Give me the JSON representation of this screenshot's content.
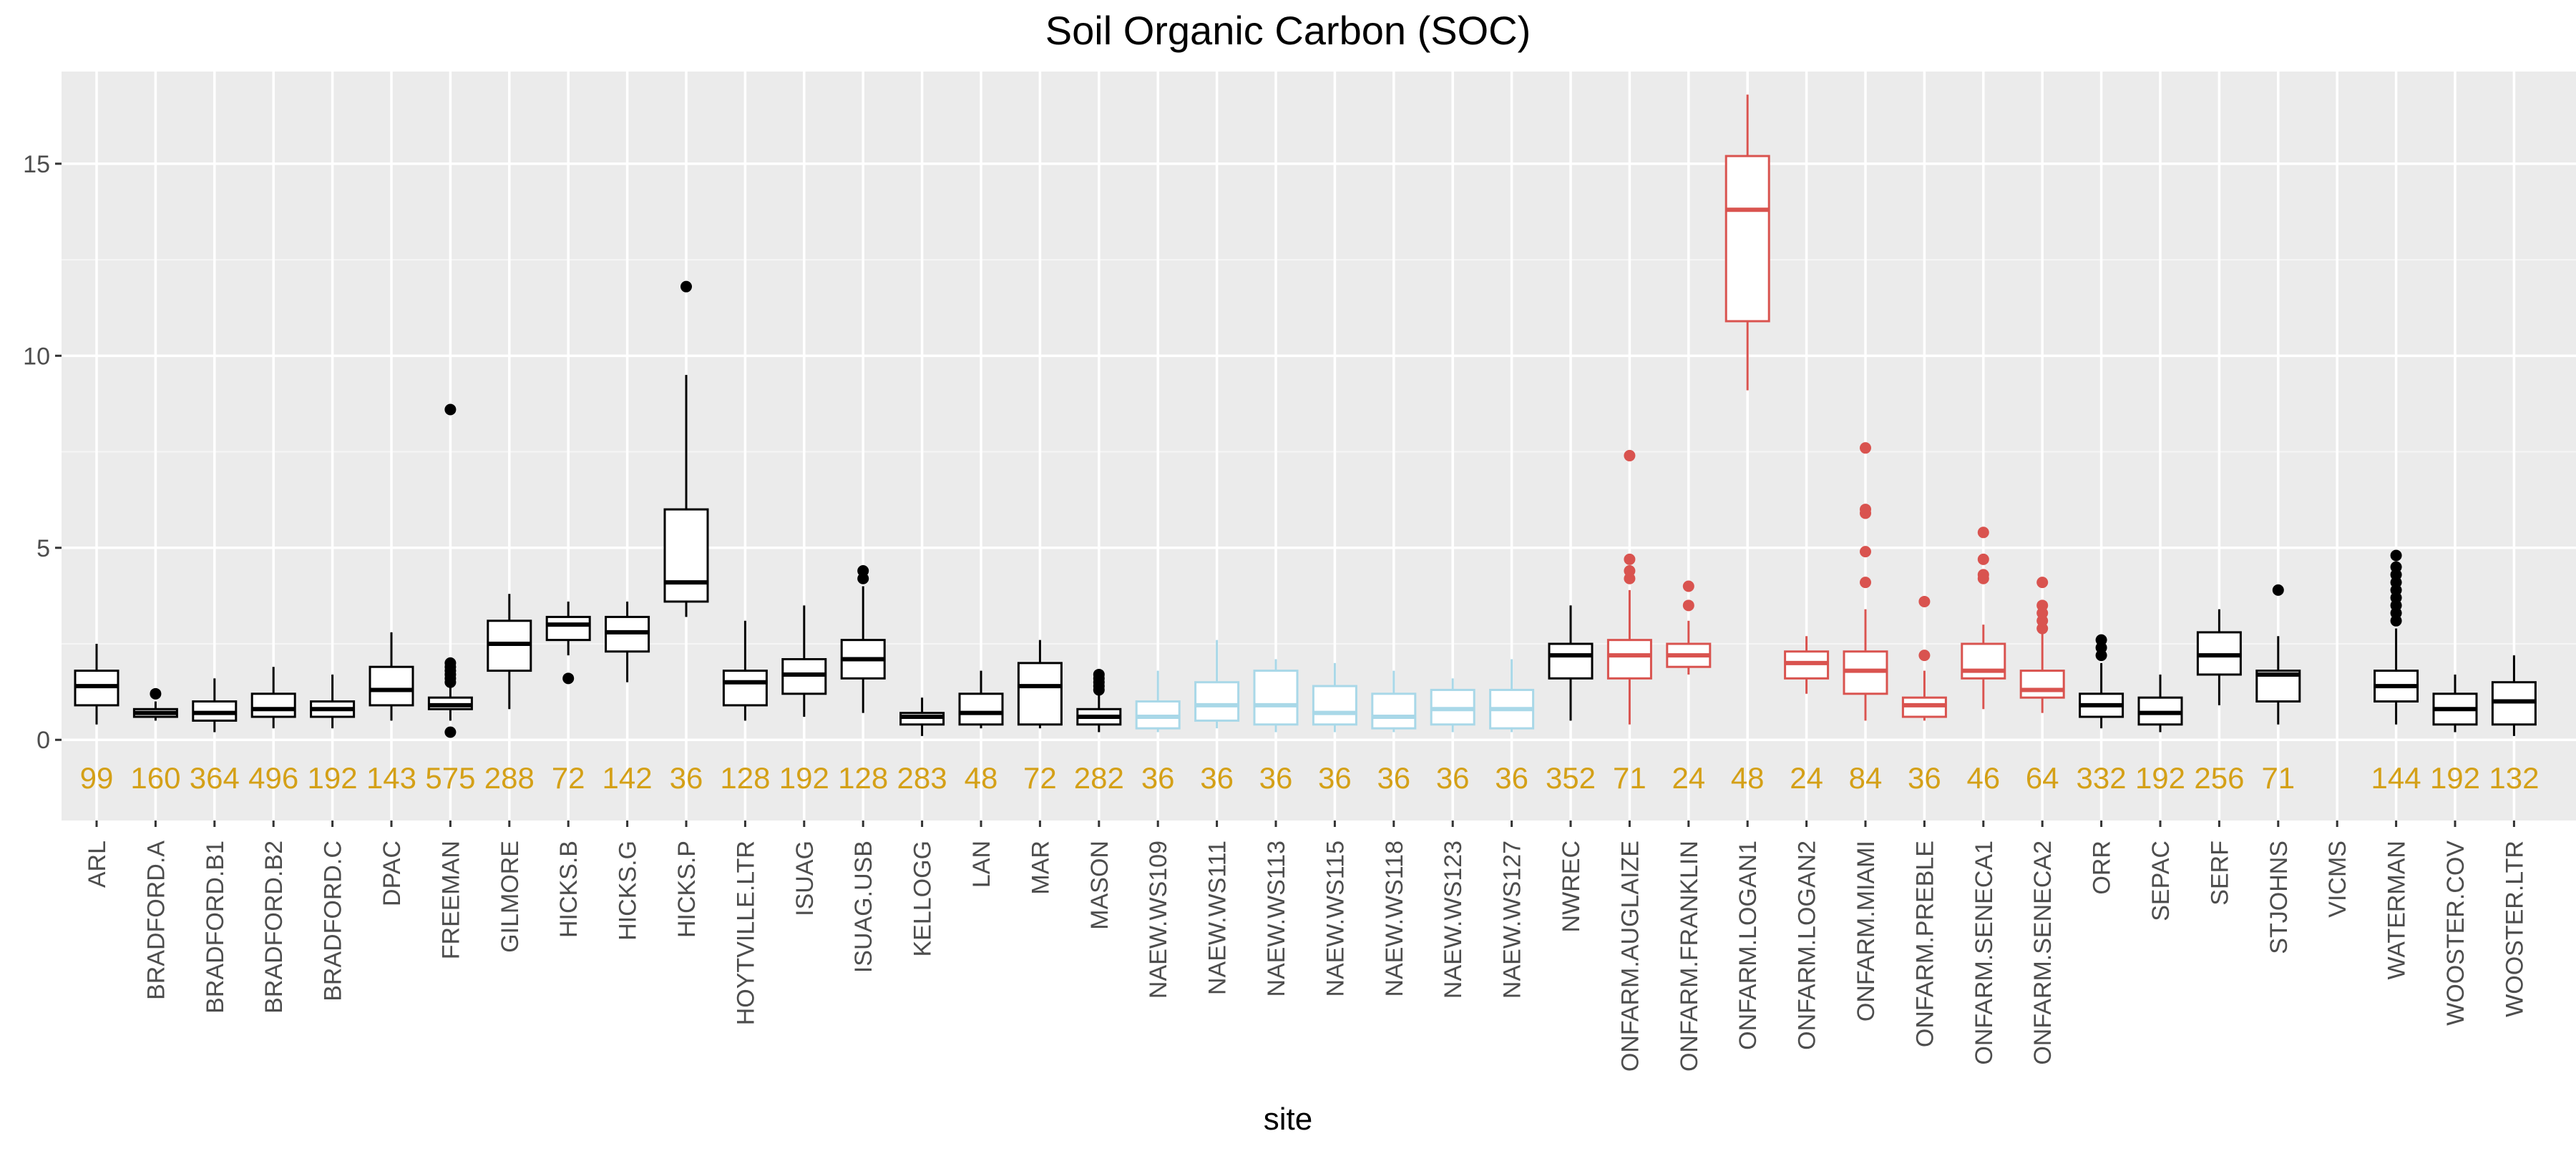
{
  "chart_data": {
    "type": "box",
    "title": "Soil Organic Carbon (SOC)",
    "xlabel": "site",
    "ylabel": "",
    "ylim": [
      -2.1,
      17.4
    ],
    "y_ticks": [
      0,
      5,
      10,
      15
    ],
    "grid": true,
    "legend": "none",
    "count_label_color": "#D4A017",
    "group_colors": {
      "default": "#000000",
      "naew": "#A9D8E8",
      "onfarm": "#D9534F"
    },
    "count_label_y": -1.0,
    "sites": [
      {
        "name": "ARL",
        "group": "default",
        "n": "99",
        "box": [
          0.4,
          0.9,
          1.4,
          1.8,
          2.5
        ],
        "outliers": []
      },
      {
        "name": "BRADFORD.A",
        "group": "default",
        "n": "160",
        "box": [
          0.5,
          0.6,
          0.7,
          0.8,
          1.0
        ],
        "outliers": [
          1.2
        ]
      },
      {
        "name": "BRADFORD.B1",
        "group": "default",
        "n": "364",
        "box": [
          0.2,
          0.5,
          0.7,
          1.0,
          1.6
        ],
        "outliers": []
      },
      {
        "name": "BRADFORD.B2",
        "group": "default",
        "n": "496",
        "box": [
          0.3,
          0.6,
          0.8,
          1.2,
          1.9
        ],
        "outliers": []
      },
      {
        "name": "BRADFORD.C",
        "group": "default",
        "n": "192",
        "box": [
          0.3,
          0.6,
          0.8,
          1.0,
          1.7
        ],
        "outliers": []
      },
      {
        "name": "DPAC",
        "group": "default",
        "n": "143",
        "box": [
          0.5,
          0.9,
          1.3,
          1.9,
          2.8
        ],
        "outliers": []
      },
      {
        "name": "FREEMAN",
        "group": "default",
        "n": "575",
        "box": [
          0.5,
          0.8,
          0.9,
          1.1,
          1.4
        ],
        "outliers": [
          0.2,
          1.5,
          1.6,
          1.7,
          1.8,
          1.9,
          2.0,
          8.6
        ]
      },
      {
        "name": "GILMORE",
        "group": "default",
        "n": "288",
        "box": [
          0.8,
          1.8,
          2.5,
          3.1,
          3.8
        ],
        "outliers": []
      },
      {
        "name": "HICKS.B",
        "group": "default",
        "n": "72",
        "box": [
          2.2,
          2.6,
          3.0,
          3.2,
          3.6
        ],
        "outliers": [
          1.6
        ]
      },
      {
        "name": "HICKS.G",
        "group": "default",
        "n": "142",
        "box": [
          1.5,
          2.3,
          2.8,
          3.2,
          3.6
        ],
        "outliers": []
      },
      {
        "name": "HICKS.P",
        "group": "default",
        "n": "36",
        "box": [
          3.2,
          3.6,
          4.1,
          6.0,
          9.5
        ],
        "outliers": [
          11.8
        ]
      },
      {
        "name": "HOYTVILLE.LTR",
        "group": "default",
        "n": "128",
        "box": [
          0.5,
          0.9,
          1.5,
          1.8,
          3.1
        ],
        "outliers": []
      },
      {
        "name": "ISUAG",
        "group": "default",
        "n": "192",
        "box": [
          0.6,
          1.2,
          1.7,
          2.1,
          3.5
        ],
        "outliers": []
      },
      {
        "name": "ISUAG.USB",
        "group": "default",
        "n": "128",
        "box": [
          0.7,
          1.6,
          2.1,
          2.6,
          4.0
        ],
        "outliers": [
          4.2,
          4.4
        ]
      },
      {
        "name": "KELLOGG",
        "group": "default",
        "n": "283",
        "box": [
          0.1,
          0.4,
          0.6,
          0.7,
          1.1
        ],
        "outliers": []
      },
      {
        "name": "LAN",
        "group": "default",
        "n": "48",
        "box": [
          0.3,
          0.4,
          0.7,
          1.2,
          1.8
        ],
        "outliers": []
      },
      {
        "name": "MAR",
        "group": "default",
        "n": "72",
        "box": [
          0.3,
          0.4,
          1.4,
          2.0,
          2.6
        ],
        "outliers": []
      },
      {
        "name": "MASON",
        "group": "default",
        "n": "282",
        "box": [
          0.2,
          0.4,
          0.6,
          0.8,
          1.2
        ],
        "outliers": [
          1.3,
          1.4,
          1.5,
          1.6,
          1.7
        ]
      },
      {
        "name": "NAEW.WS109",
        "group": "naew",
        "n": "36",
        "box": [
          0.2,
          0.3,
          0.6,
          1.0,
          1.8
        ],
        "outliers": []
      },
      {
        "name": "NAEW.WS111",
        "group": "naew",
        "n": "36",
        "box": [
          0.3,
          0.5,
          0.9,
          1.5,
          2.6
        ],
        "outliers": []
      },
      {
        "name": "NAEW.WS113",
        "group": "naew",
        "n": "36",
        "box": [
          0.2,
          0.4,
          0.9,
          1.8,
          2.1
        ],
        "outliers": []
      },
      {
        "name": "NAEW.WS115",
        "group": "naew",
        "n": "36",
        "box": [
          0.2,
          0.4,
          0.7,
          1.4,
          2.0
        ],
        "outliers": []
      },
      {
        "name": "NAEW.WS118",
        "group": "naew",
        "n": "36",
        "box": [
          0.2,
          0.3,
          0.6,
          1.2,
          1.8
        ],
        "outliers": []
      },
      {
        "name": "NAEW.WS123",
        "group": "naew",
        "n": "36",
        "box": [
          0.2,
          0.4,
          0.8,
          1.3,
          1.6
        ],
        "outliers": []
      },
      {
        "name": "NAEW.WS127",
        "group": "naew",
        "n": "36",
        "box": [
          0.2,
          0.3,
          0.8,
          1.3,
          2.1
        ],
        "outliers": []
      },
      {
        "name": "NWREC",
        "group": "default",
        "n": "352",
        "box": [
          0.5,
          1.6,
          2.2,
          2.5,
          3.5
        ],
        "outliers": []
      },
      {
        "name": "ONFARM.AUGLAIZE",
        "group": "onfarm",
        "n": "71",
        "box": [
          0.4,
          1.6,
          2.2,
          2.6,
          3.9
        ],
        "outliers": [
          4.2,
          4.4,
          4.7,
          7.4
        ]
      },
      {
        "name": "ONFARM.FRANKLIN",
        "group": "onfarm",
        "n": "24",
        "box": [
          1.7,
          1.9,
          2.2,
          2.5,
          3.1
        ],
        "outliers": [
          3.5,
          4.0
        ]
      },
      {
        "name": "ONFARM.LOGAN1",
        "group": "onfarm",
        "n": "48",
        "box": [
          9.1,
          10.9,
          13.8,
          15.2,
          16.8
        ],
        "outliers": []
      },
      {
        "name": "ONFARM.LOGAN2",
        "group": "onfarm",
        "n": "24",
        "box": [
          1.2,
          1.6,
          2.0,
          2.3,
          2.7
        ],
        "outliers": []
      },
      {
        "name": "ONFARM.MIAMI",
        "group": "onfarm",
        "n": "84",
        "box": [
          0.5,
          1.2,
          1.8,
          2.3,
          3.4
        ],
        "outliers": [
          4.1,
          4.9,
          5.9,
          6.0,
          7.6
        ]
      },
      {
        "name": "ONFARM.PREBLE",
        "group": "onfarm",
        "n": "36",
        "box": [
          0.5,
          0.6,
          0.9,
          1.1,
          1.8
        ],
        "outliers": [
          2.2,
          3.6
        ]
      },
      {
        "name": "ONFARM.SENECA1",
        "group": "onfarm",
        "n": "46",
        "box": [
          0.8,
          1.6,
          1.8,
          2.5,
          3.0
        ],
        "outliers": [
          4.2,
          4.3,
          4.7,
          5.4
        ]
      },
      {
        "name": "ONFARM.SENECA2",
        "group": "onfarm",
        "n": "64",
        "box": [
          0.7,
          1.1,
          1.3,
          1.8,
          2.8
        ],
        "outliers": [
          2.9,
          3.1,
          3.3,
          3.5,
          4.1
        ]
      },
      {
        "name": "ORR",
        "group": "default",
        "n": "332",
        "box": [
          0.3,
          0.6,
          0.9,
          1.2,
          2.0
        ],
        "outliers": [
          2.2,
          2.4,
          2.6
        ]
      },
      {
        "name": "SEPAC",
        "group": "default",
        "n": "192",
        "box": [
          0.2,
          0.4,
          0.7,
          1.1,
          1.7
        ],
        "outliers": []
      },
      {
        "name": "SERF",
        "group": "default",
        "n": "256",
        "box": [
          0.9,
          1.7,
          2.2,
          2.8,
          3.4
        ],
        "outliers": []
      },
      {
        "name": "STJOHNS",
        "group": "default",
        "n": "71",
        "box": [
          0.4,
          1.0,
          1.7,
          1.8,
          2.7
        ],
        "outliers": [
          3.9
        ]
      },
      {
        "name": "VICMS",
        "group": "default",
        "n": "",
        "box": null,
        "outliers": []
      },
      {
        "name": "WATERMAN",
        "group": "default",
        "n": "144",
        "box": [
          0.4,
          1.0,
          1.4,
          1.8,
          2.9
        ],
        "outliers": [
          3.1,
          3.3,
          3.5,
          3.7,
          3.9,
          4.1,
          4.3,
          4.5,
          4.8
        ]
      },
      {
        "name": "WOOSTER.COV",
        "group": "default",
        "n": "192",
        "box": [
          0.2,
          0.4,
          0.8,
          1.2,
          1.7
        ],
        "outliers": []
      },
      {
        "name": "WOOSTER.LTR",
        "group": "default",
        "n": "132",
        "box": [
          0.1,
          0.4,
          1.0,
          1.5,
          2.2
        ],
        "outliers": []
      }
    ]
  }
}
